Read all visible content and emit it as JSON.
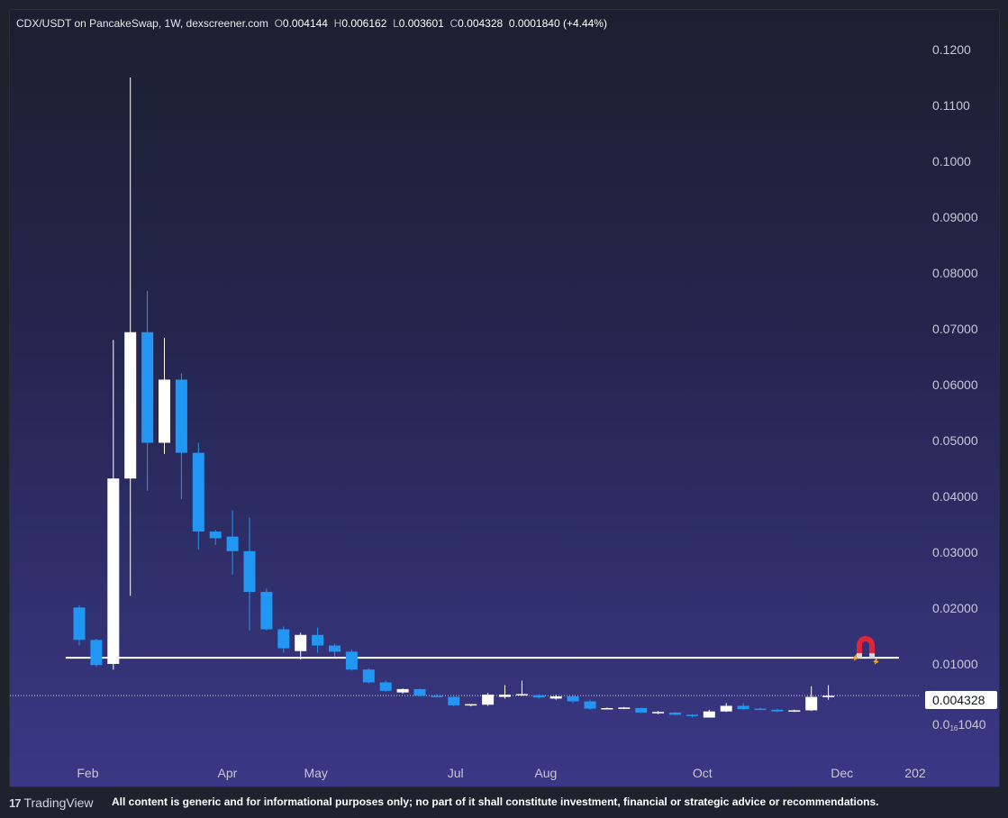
{
  "header": {
    "pair": "CDX/USDT on PancakeSwap, 1W, dexscreener.com",
    "open_label": "O",
    "open": "0.004144",
    "high_label": "H",
    "high": "0.006162",
    "low_label": "L",
    "low": "0.003601",
    "close_label": "C",
    "close": "0.004328",
    "change": "0.0001840 (+4.44%)"
  },
  "price_badge": "0.004328",
  "low_axis_label": {
    "prefix": "0.0",
    "sub": "16",
    "suffix": "1040"
  },
  "footer": {
    "brand": "TradingView",
    "disclaimer": "All content is generic and for informational purposes only; no part of it shall constitute investment, financial or strategic advice or recommendations."
  },
  "colors": {
    "up": "#ffffff",
    "down": "#2196f3",
    "line": "#ffffff"
  },
  "icons": {
    "magnet": "magnet-icon",
    "logo": "tradingview-logo-icon"
  },
  "chart_data": {
    "type": "candlestick",
    "interval": "1W",
    "ylim": [
      0,
      0.125
    ],
    "yticks": [
      "0.1200",
      "0.1100",
      "0.1000",
      "0.09000",
      "0.08000",
      "0.07000",
      "0.06000",
      "0.05000",
      "0.04000",
      "0.03000",
      "0.02000",
      "0.01000"
    ],
    "ytick_values": [
      0.12,
      0.11,
      0.1,
      0.09,
      0.08,
      0.07,
      0.06,
      0.05,
      0.04,
      0.03,
      0.02,
      0.01
    ],
    "xticks": [
      {
        "label": "Feb",
        "index": 0.5
      },
      {
        "label": "Apr",
        "index": 8.7
      },
      {
        "label": "May",
        "index": 13.9
      },
      {
        "label": "Jul",
        "index": 22.1
      },
      {
        "label": "Aug",
        "index": 27.4
      },
      {
        "label": "Oct",
        "index": 36.6
      },
      {
        "label": "Dec",
        "index": 44.8
      },
      {
        "label": "202",
        "index": 49.1
      }
    ],
    "horizontal_line": {
      "value": 0.0111,
      "from_index": -0.8
    },
    "current_price": 0.004328,
    "candles": [
      {
        "o": 0.0201,
        "h": 0.0205,
        "l": 0.0133,
        "c": 0.0143
      },
      {
        "o": 0.0143,
        "h": 0.0145,
        "l": 0.0095,
        "c": 0.0098
      },
      {
        "o": 0.01,
        "h": 0.068,
        "l": 0.009,
        "c": 0.0432
      },
      {
        "o": 0.0432,
        "h": 0.115,
        "l": 0.0222,
        "c": 0.0694
      },
      {
        "o": 0.0694,
        "h": 0.0768,
        "l": 0.041,
        "c": 0.0496
      },
      {
        "o": 0.0496,
        "h": 0.0684,
        "l": 0.0476,
        "c": 0.0609
      },
      {
        "o": 0.0609,
        "h": 0.062,
        "l": 0.0395,
        "c": 0.0478
      },
      {
        "o": 0.0478,
        "h": 0.0496,
        "l": 0.0305,
        "c": 0.0337
      },
      {
        "o": 0.0337,
        "h": 0.034,
        "l": 0.0313,
        "c": 0.0325
      },
      {
        "o": 0.0328,
        "h": 0.0375,
        "l": 0.026,
        "c": 0.0302
      },
      {
        "o": 0.0302,
        "h": 0.0362,
        "l": 0.016,
        "c": 0.0229
      },
      {
        "o": 0.0229,
        "h": 0.0235,
        "l": 0.016,
        "c": 0.0162
      },
      {
        "o": 0.0162,
        "h": 0.0167,
        "l": 0.012,
        "c": 0.0128
      },
      {
        "o": 0.0123,
        "h": 0.0156,
        "l": 0.0108,
        "c": 0.0152
      },
      {
        "o": 0.0152,
        "h": 0.0165,
        "l": 0.012,
        "c": 0.0133
      },
      {
        "o": 0.0133,
        "h": 0.0136,
        "l": 0.0112,
        "c": 0.0122
      },
      {
        "o": 0.0122,
        "h": 0.0125,
        "l": 0.0088,
        "c": 0.009
      },
      {
        "o": 0.009,
        "h": 0.0092,
        "l": 0.0065,
        "c": 0.0067
      },
      {
        "o": 0.0067,
        "h": 0.007,
        "l": 0.005,
        "c": 0.0052
      },
      {
        "o": 0.0049,
        "h": 0.0056,
        "l": 0.0047,
        "c": 0.0055
      },
      {
        "o": 0.0055,
        "h": 0.0056,
        "l": 0.0042,
        "c": 0.0043
      },
      {
        "o": 0.0043,
        "h": 0.0046,
        "l": 0.004,
        "c": 0.0041
      },
      {
        "o": 0.0041,
        "h": 0.0042,
        "l": 0.0024,
        "c": 0.0026
      },
      {
        "o": 0.0026,
        "h": 0.0028,
        "l": 0.0024,
        "c": 0.0028
      },
      {
        "o": 0.0027,
        "h": 0.0048,
        "l": 0.0025,
        "c": 0.0045
      },
      {
        "o": 0.0041,
        "h": 0.0062,
        "l": 0.0038,
        "c": 0.0045
      },
      {
        "o": 0.0045,
        "h": 0.007,
        "l": 0.0043,
        "c": 0.0046
      },
      {
        "o": 0.0044,
        "h": 0.0046,
        "l": 0.0038,
        "c": 0.004
      },
      {
        "o": 0.0038,
        "h": 0.0045,
        "l": 0.0036,
        "c": 0.0042
      },
      {
        "o": 0.0042,
        "h": 0.0045,
        "l": 0.003,
        "c": 0.0033
      },
      {
        "o": 0.0033,
        "h": 0.0036,
        "l": 0.0018,
        "c": 0.002
      },
      {
        "o": 0.002,
        "h": 0.0022,
        "l": 0.0019,
        "c": 0.0021
      },
      {
        "o": 0.002,
        "h": 0.0023,
        "l": 0.0019,
        "c": 0.0022
      },
      {
        "o": 0.0021,
        "h": 0.0022,
        "l": 0.0012,
        "c": 0.0013
      },
      {
        "o": 0.0014,
        "h": 0.0016,
        "l": 0.001,
        "c": 0.0014
      },
      {
        "o": 0.0013,
        "h": 0.0014,
        "l": 0.0008,
        "c": 0.0009
      },
      {
        "o": 0.0009,
        "h": 0.001,
        "l": 0.0004,
        "c": 0.0008
      },
      {
        "o": 0.0004,
        "h": 0.0018,
        "l": 0.0004,
        "c": 0.0015
      },
      {
        "o": 0.0015,
        "h": 0.003,
        "l": 0.0014,
        "c": 0.0025
      },
      {
        "o": 0.0025,
        "h": 0.003,
        "l": 0.0018,
        "c": 0.0019
      },
      {
        "o": 0.002,
        "h": 0.0022,
        "l": 0.0018,
        "c": 0.0019
      },
      {
        "o": 0.0018,
        "h": 0.002,
        "l": 0.0014,
        "c": 0.0015
      },
      {
        "o": 0.0015,
        "h": 0.0018,
        "l": 0.0014,
        "c": 0.0017
      },
      {
        "o": 0.0017,
        "h": 0.006,
        "l": 0.0016,
        "c": 0.0041
      },
      {
        "o": 0.0041,
        "h": 0.0062,
        "l": 0.0036,
        "c": 0.0043
      }
    ]
  }
}
